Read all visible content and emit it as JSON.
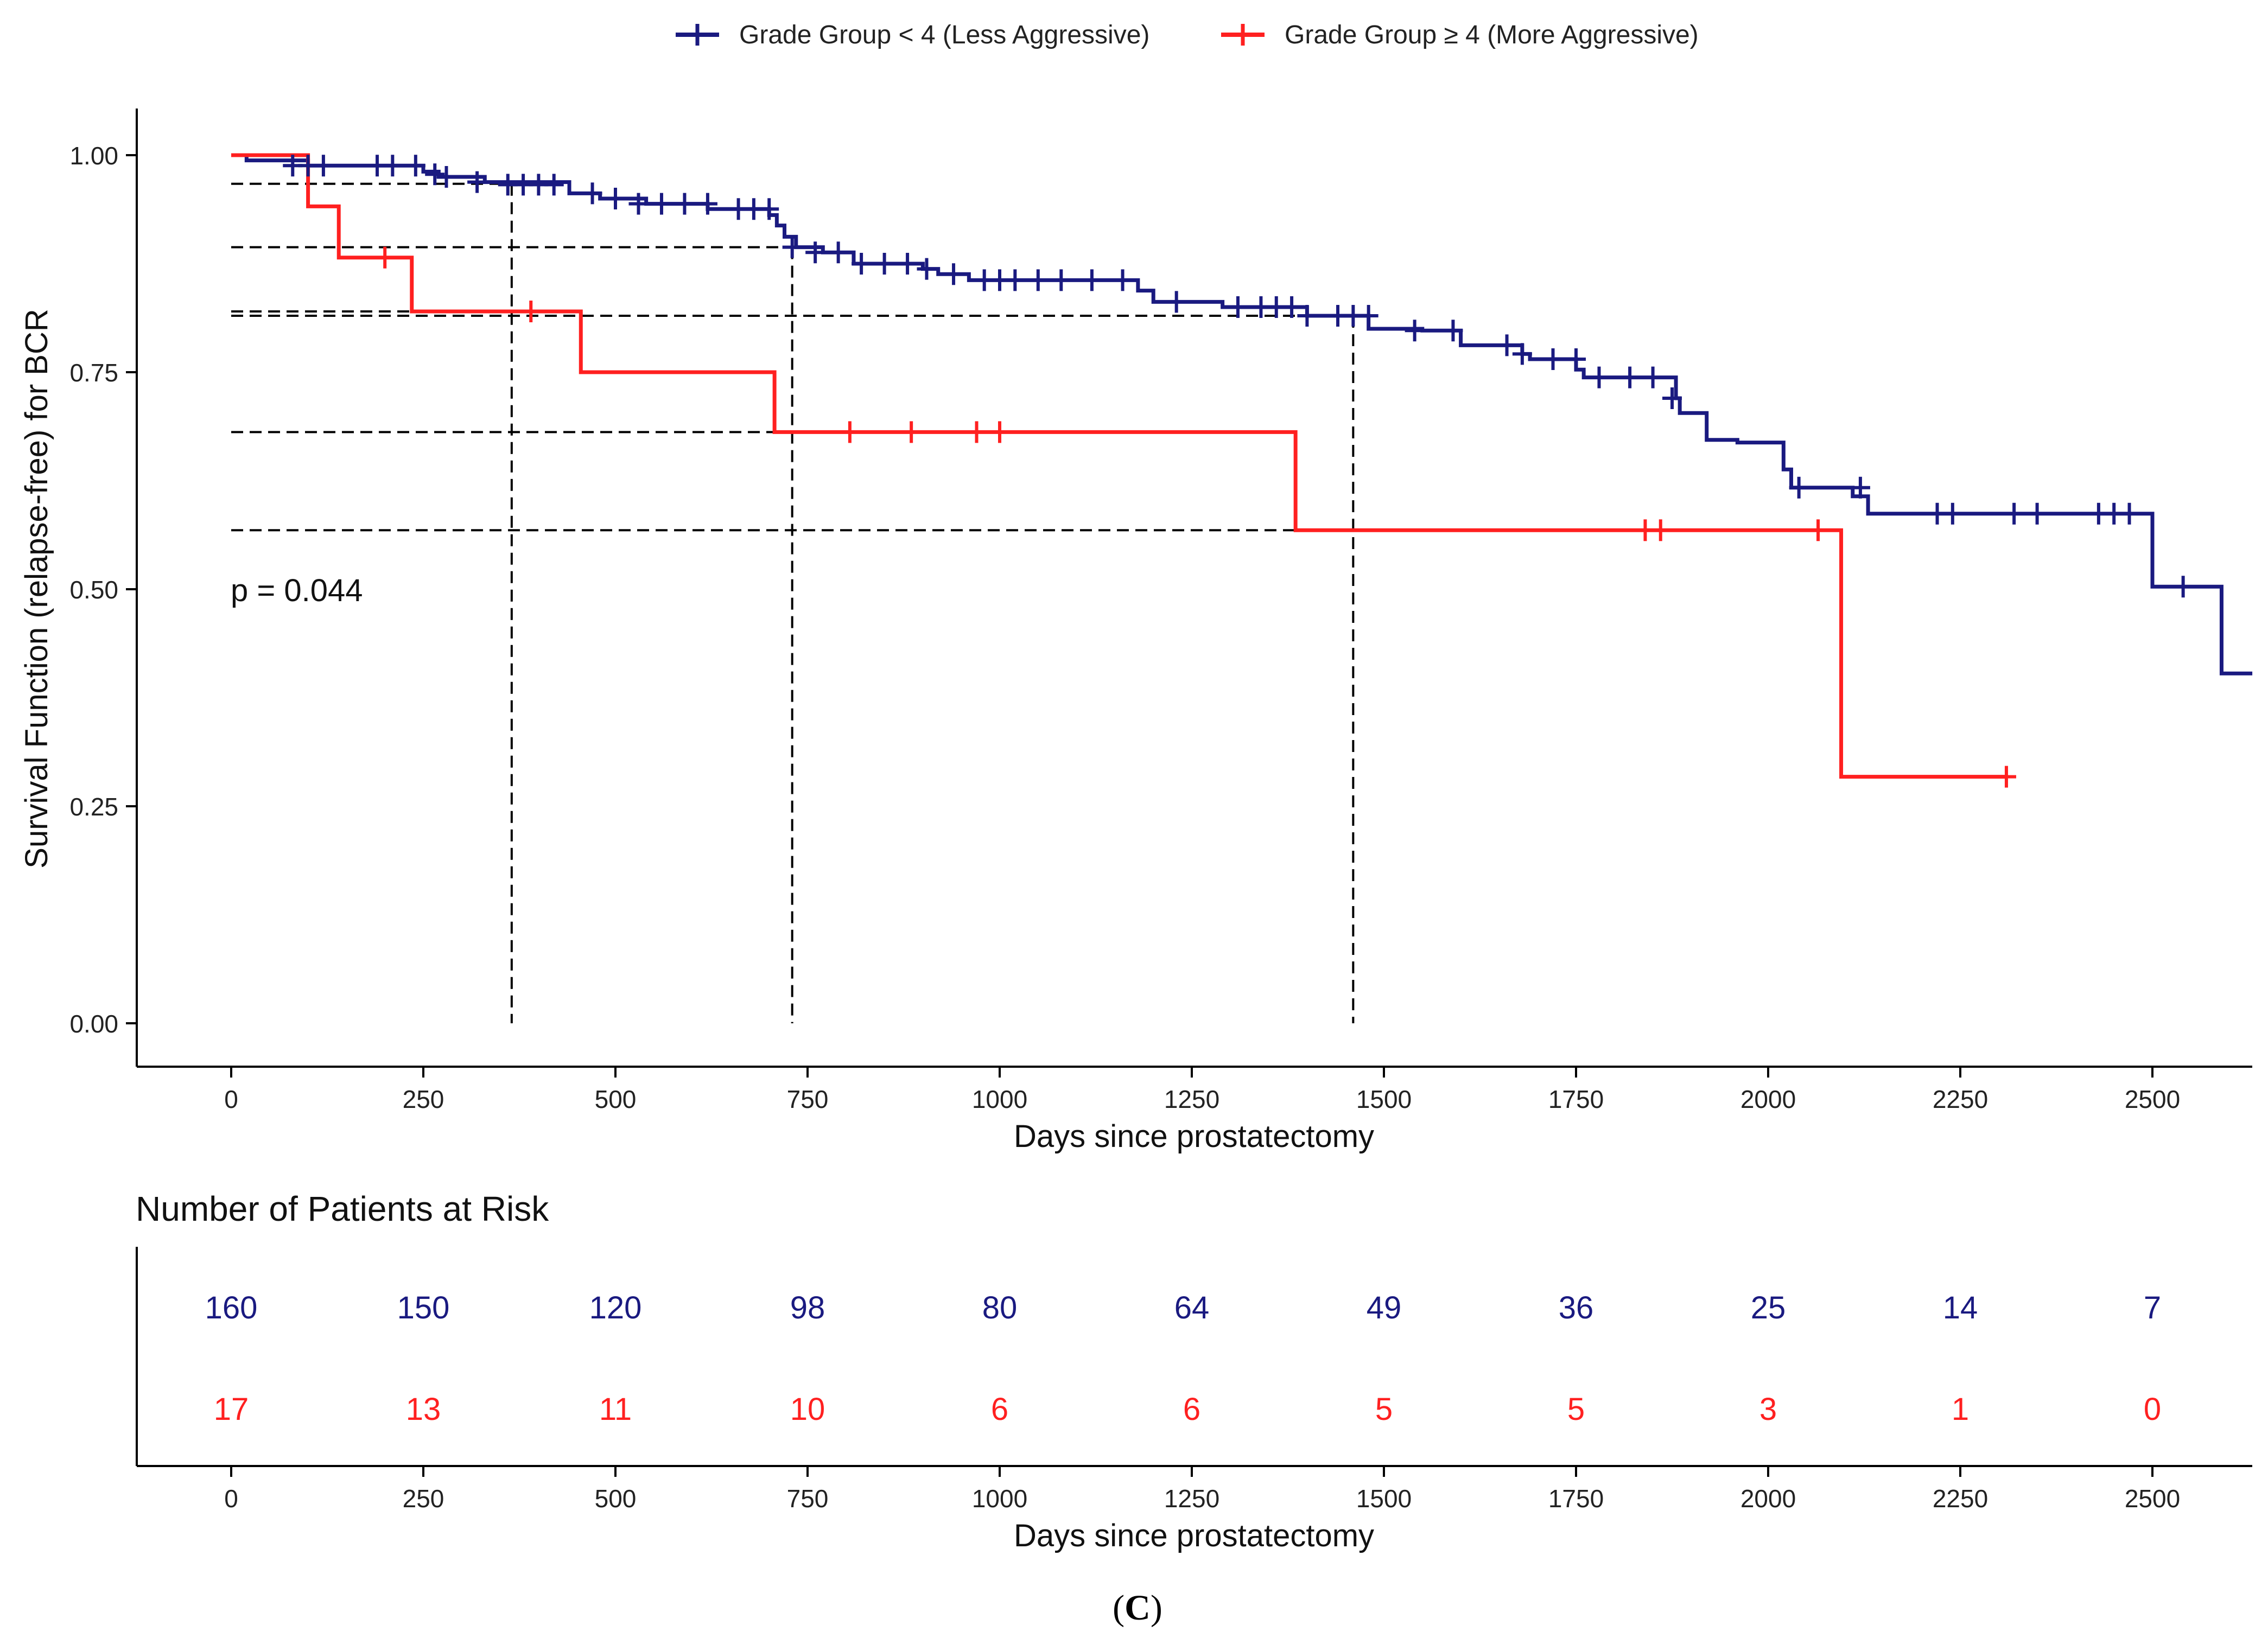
{
  "chart_data": {
    "type": "line",
    "subtype": "kaplan-meier",
    "title": "",
    "xlabel": "Days since prostatectomy",
    "ylabel": "Survival Function (relapse-free) for BCR",
    "xlim": [
      -120,
      2630
    ],
    "ylim": [
      -0.05,
      1.05
    ],
    "x_ticks": [
      0,
      250,
      500,
      750,
      1000,
      1250,
      1500,
      1750,
      2000,
      2250,
      2500
    ],
    "y_ticks": [
      0.0,
      0.25,
      0.5,
      0.75,
      1.0
    ],
    "y_tick_labels": [
      "0.00",
      "0.25",
      "0.50",
      "0.75",
      "1.00"
    ],
    "legend_position": "top",
    "pvalue_text": "p = 0.044",
    "colors": {
      "low": "#1a1a80",
      "high": "#ff2020",
      "ref": "#000000"
    },
    "series": [
      {
        "name": "Grade Group < 4 (Less Aggressive)",
        "color": "#1a1a80",
        "steps": [
          [
            0,
            1.0
          ],
          [
            20,
            0.994
          ],
          [
            100,
            0.988
          ],
          [
            250,
            0.981
          ],
          [
            270,
            0.975
          ],
          [
            330,
            0.969
          ],
          [
            440,
            0.956
          ],
          [
            480,
            0.95
          ],
          [
            540,
            0.944
          ],
          [
            620,
            0.938
          ],
          [
            700,
            0.931
          ],
          [
            710,
            0.919
          ],
          [
            720,
            0.906
          ],
          [
            735,
            0.894
          ],
          [
            770,
            0.888
          ],
          [
            810,
            0.875
          ],
          [
            900,
            0.869
          ],
          [
            920,
            0.863
          ],
          [
            960,
            0.856
          ],
          [
            1180,
            0.844
          ],
          [
            1200,
            0.831
          ],
          [
            1290,
            0.825
          ],
          [
            1400,
            0.815
          ],
          [
            1480,
            0.8
          ],
          [
            1550,
            0.798
          ],
          [
            1600,
            0.781
          ],
          [
            1680,
            0.771
          ],
          [
            1690,
            0.765
          ],
          [
            1750,
            0.753
          ],
          [
            1760,
            0.744
          ],
          [
            1880,
            0.72
          ],
          [
            1885,
            0.703
          ],
          [
            1920,
            0.672
          ],
          [
            1960,
            0.669
          ],
          [
            2020,
            0.638
          ],
          [
            2030,
            0.617
          ],
          [
            2110,
            0.607
          ],
          [
            2130,
            0.587
          ],
          [
            2500,
            0.503
          ],
          [
            2590,
            0.403
          ],
          [
            2630,
            0.403
          ]
        ],
        "censors": [
          [
            80,
            0.988
          ],
          [
            100,
            0.988
          ],
          [
            120,
            0.988
          ],
          [
            190,
            0.988
          ],
          [
            210,
            0.988
          ],
          [
            240,
            0.988
          ],
          [
            265,
            0.978
          ],
          [
            280,
            0.975
          ],
          [
            320,
            0.969
          ],
          [
            360,
            0.966
          ],
          [
            380,
            0.966
          ],
          [
            400,
            0.966
          ],
          [
            420,
            0.966
          ],
          [
            470,
            0.956
          ],
          [
            500,
            0.95
          ],
          [
            530,
            0.944
          ],
          [
            560,
            0.944
          ],
          [
            590,
            0.944
          ],
          [
            620,
            0.944
          ],
          [
            660,
            0.938
          ],
          [
            680,
            0.938
          ],
          [
            700,
            0.938
          ],
          [
            730,
            0.894
          ],
          [
            760,
            0.888
          ],
          [
            790,
            0.888
          ],
          [
            820,
            0.875
          ],
          [
            850,
            0.875
          ],
          [
            880,
            0.875
          ],
          [
            905,
            0.869
          ],
          [
            940,
            0.863
          ],
          [
            980,
            0.856
          ],
          [
            1000,
            0.856
          ],
          [
            1020,
            0.856
          ],
          [
            1050,
            0.856
          ],
          [
            1080,
            0.856
          ],
          [
            1120,
            0.856
          ],
          [
            1160,
            0.856
          ],
          [
            1230,
            0.831
          ],
          [
            1310,
            0.825
          ],
          [
            1340,
            0.825
          ],
          [
            1360,
            0.825
          ],
          [
            1380,
            0.825
          ],
          [
            1400,
            0.815
          ],
          [
            1440,
            0.815
          ],
          [
            1460,
            0.815
          ],
          [
            1480,
            0.815
          ],
          [
            1540,
            0.798
          ],
          [
            1590,
            0.798
          ],
          [
            1660,
            0.781
          ],
          [
            1680,
            0.771
          ],
          [
            1720,
            0.765
          ],
          [
            1750,
            0.765
          ],
          [
            1780,
            0.744
          ],
          [
            1820,
            0.744
          ],
          [
            1850,
            0.744
          ],
          [
            1875,
            0.72
          ],
          [
            2040,
            0.617
          ],
          [
            2120,
            0.617
          ],
          [
            2220,
            0.587
          ],
          [
            2240,
            0.587
          ],
          [
            2320,
            0.587
          ],
          [
            2350,
            0.587
          ],
          [
            2430,
            0.587
          ],
          [
            2450,
            0.587
          ],
          [
            2470,
            0.587
          ],
          [
            2540,
            0.503
          ]
        ]
      },
      {
        "name": "Grade Group ≥ 4 (More Aggressive)",
        "color": "#ff2020",
        "steps": [
          [
            0,
            1.0
          ],
          [
            100,
            0.941
          ],
          [
            140,
            0.882
          ],
          [
            235,
            0.82
          ],
          [
            455,
            0.75
          ],
          [
            707,
            0.681
          ],
          [
            1385,
            0.568
          ],
          [
            2095,
            0.284
          ],
          [
            2310,
            0.284
          ]
        ],
        "censors": [
          [
            200,
            0.882
          ],
          [
            390,
            0.82
          ],
          [
            805,
            0.681
          ],
          [
            885,
            0.681
          ],
          [
            970,
            0.681
          ],
          [
            1000,
            0.681
          ],
          [
            1840,
            0.568
          ],
          [
            1860,
            0.568
          ],
          [
            2065,
            0.568
          ],
          [
            2310,
            0.284
          ]
        ]
      }
    ],
    "reference_lines": [
      {
        "x": 365,
        "y_low": 0.967,
        "y_high": 0.82
      },
      {
        "x": 730,
        "y_low": 0.894,
        "y_high": 0.681
      },
      {
        "x": 1460,
        "y_low": 0.815,
        "y_high": 0.568
      }
    ],
    "risk_table": {
      "title": "Number of Patients at Risk",
      "xlabel": "Days since prostatectomy",
      "x": [
        0,
        250,
        500,
        750,
        1000,
        1250,
        1500,
        1750,
        2000,
        2250,
        2500
      ],
      "rows": [
        {
          "name": "Grade Group < 4 (Less Aggressive)",
          "color": "#1a1a80",
          "values": [
            160,
            150,
            120,
            98,
            80,
            64,
            49,
            36,
            25,
            14,
            7
          ]
        },
        {
          "name": "Grade Group ≥ 4 (More Aggressive)",
          "color": "#ff2020",
          "values": [
            17,
            13,
            11,
            10,
            6,
            6,
            5,
            5,
            3,
            1,
            0
          ]
        }
      ]
    }
  },
  "caption": {
    "open": "(",
    "letter": "C",
    "close": ")"
  }
}
